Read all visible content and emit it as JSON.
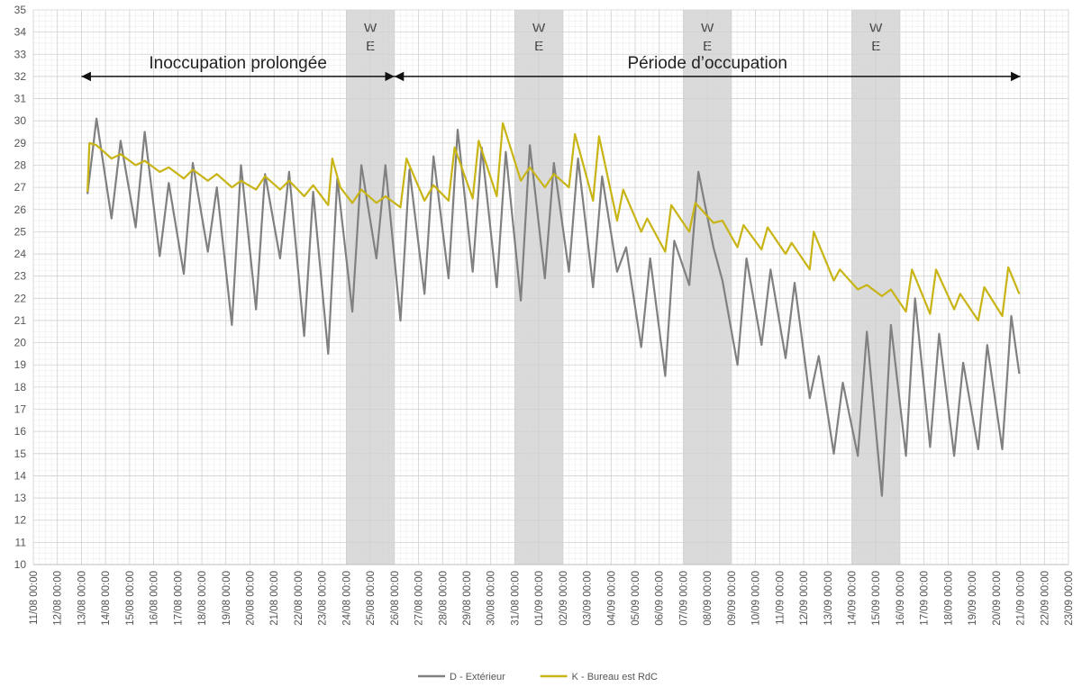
{
  "chart_data": {
    "type": "line",
    "title": "",
    "xlabel": "",
    "ylabel": "",
    "ylim": [
      10,
      35
    ],
    "yticks": [
      10,
      11,
      12,
      13,
      14,
      15,
      16,
      17,
      18,
      19,
      20,
      21,
      22,
      23,
      24,
      25,
      26,
      27,
      28,
      29,
      30,
      31,
      32,
      33,
      34,
      35
    ],
    "x_range": [
      "2020-08-11",
      "2020-09-23"
    ],
    "x_tick_labels": [
      "11/08 00:00",
      "12/08 00:00",
      "13/08 00:00",
      "14/08 00:00",
      "15/08 00:00",
      "16/08 00:00",
      "17/08 00:00",
      "18/08 00:00",
      "19/08 00:00",
      "20/08 00:00",
      "21/08 00:00",
      "22/08 00:00",
      "23/08 00:00",
      "24/08 00:00",
      "25/08 00:00",
      "26/08 00:00",
      "27/08 00:00",
      "28/08 00:00",
      "29/08 00:00",
      "30/08 00:00",
      "31/08 00:00",
      "01/09 00:00",
      "02/09 00:00",
      "03/09 00:00",
      "04/09 00:00",
      "05/09 00:00",
      "06/09 00:00",
      "07/09 00:00",
      "08/09 00:00",
      "09/09 00:00",
      "10/09 00:00",
      "11/09 00:00",
      "12/09 00:00",
      "13/09 00:00",
      "14/09 00:00",
      "15/09 00:00",
      "16/09 00:00",
      "17/09 00:00",
      "18/09 00:00",
      "19/09 00:00",
      "20/09 00:00",
      "21/09 00:00",
      "22/09 00:00",
      "23/09 00:00"
    ],
    "grid": true,
    "legend": "bottom",
    "weekends": [
      {
        "start": "2020-08-24 00:00",
        "end": "2020-08-26 00:00",
        "label_top": "W",
        "label_bottom": "E"
      },
      {
        "start": "2020-08-31 00:00",
        "end": "2020-09-02 00:00",
        "label_top": "W",
        "label_bottom": "E"
      },
      {
        "start": "2020-09-07 00:00",
        "end": "2020-09-09 00:00",
        "label_top": "W",
        "label_bottom": "E"
      },
      {
        "start": "2020-09-14 00:00",
        "end": "2020-09-16 00:00",
        "label_top": "W",
        "label_bottom": "E"
      }
    ],
    "annotations": [
      {
        "text": "Inoccupation prolongée",
        "from": "2020-08-13 00:00",
        "to": "2020-08-26 00:00",
        "y": 32
      },
      {
        "text": "Période d’occupation",
        "from": "2020-08-26 00:00",
        "to": "2020-09-21 00:00",
        "y": 32
      }
    ],
    "series": [
      {
        "name": "D - Extérieur",
        "color": "#808080",
        "points": [
          [
            "2020-08-13 06:00",
            26.7
          ],
          [
            "2020-08-13 15:00",
            30.1
          ],
          [
            "2020-08-14 06:00",
            25.6
          ],
          [
            "2020-08-14 15:00",
            29.1
          ],
          [
            "2020-08-15 06:00",
            25.2
          ],
          [
            "2020-08-15 15:00",
            29.5
          ],
          [
            "2020-08-16 06:00",
            23.9
          ],
          [
            "2020-08-16 15:00",
            27.2
          ],
          [
            "2020-08-17 06:00",
            23.1
          ],
          [
            "2020-08-17 15:00",
            28.1
          ],
          [
            "2020-08-18 06:00",
            24.1
          ],
          [
            "2020-08-18 15:00",
            27.0
          ],
          [
            "2020-08-19 06:00",
            20.8
          ],
          [
            "2020-08-19 15:00",
            28.0
          ],
          [
            "2020-08-20 06:00",
            21.5
          ],
          [
            "2020-08-20 15:00",
            27.6
          ],
          [
            "2020-08-21 06:00",
            23.8
          ],
          [
            "2020-08-21 15:00",
            27.7
          ],
          [
            "2020-08-22 06:00",
            20.3
          ],
          [
            "2020-08-22 15:00",
            26.8
          ],
          [
            "2020-08-23 06:00",
            19.5
          ],
          [
            "2020-08-23 15:00",
            27.4
          ],
          [
            "2020-08-24 06:00",
            21.4
          ],
          [
            "2020-08-24 15:00",
            28.0
          ],
          [
            "2020-08-25 06:00",
            23.8
          ],
          [
            "2020-08-25 15:00",
            28.0
          ],
          [
            "2020-08-26 06:00",
            21.0
          ],
          [
            "2020-08-26 15:00",
            27.8
          ],
          [
            "2020-08-27 06:00",
            22.2
          ],
          [
            "2020-08-27 15:00",
            28.4
          ],
          [
            "2020-08-28 06:00",
            22.9
          ],
          [
            "2020-08-28 15:00",
            29.6
          ],
          [
            "2020-08-29 06:00",
            23.2
          ],
          [
            "2020-08-29 15:00",
            28.8
          ],
          [
            "2020-08-30 06:00",
            22.5
          ],
          [
            "2020-08-30 15:00",
            28.6
          ],
          [
            "2020-08-31 06:00",
            21.9
          ],
          [
            "2020-08-31 15:00",
            28.9
          ],
          [
            "2020-09-01 06:00",
            22.9
          ],
          [
            "2020-09-01 15:00",
            28.1
          ],
          [
            "2020-09-02 06:00",
            23.2
          ],
          [
            "2020-09-02 15:00",
            28.3
          ],
          [
            "2020-09-03 06:00",
            22.5
          ],
          [
            "2020-09-03 15:00",
            27.5
          ],
          [
            "2020-09-04 06:00",
            23.2
          ],
          [
            "2020-09-04 15:00",
            24.3
          ],
          [
            "2020-09-05 06:00",
            19.8
          ],
          [
            "2020-09-05 15:00",
            23.8
          ],
          [
            "2020-09-06 06:00",
            18.5
          ],
          [
            "2020-09-06 15:00",
            24.6
          ],
          [
            "2020-09-07 06:00",
            22.6
          ],
          [
            "2020-09-07 15:00",
            27.7
          ],
          [
            "2020-09-08 06:00",
            24.3
          ],
          [
            "2020-09-08 15:00",
            22.8
          ],
          [
            "2020-09-09 06:00",
            19.0
          ],
          [
            "2020-09-09 15:00",
            23.8
          ],
          [
            "2020-09-10 06:00",
            19.9
          ],
          [
            "2020-09-10 15:00",
            23.3
          ],
          [
            "2020-09-11 06:00",
            19.3
          ],
          [
            "2020-09-11 15:00",
            22.7
          ],
          [
            "2020-09-12 06:00",
            17.5
          ],
          [
            "2020-09-12 15:00",
            19.4
          ],
          [
            "2020-09-13 06:00",
            15.0
          ],
          [
            "2020-09-13 15:00",
            18.2
          ],
          [
            "2020-09-14 06:00",
            14.9
          ],
          [
            "2020-09-14 15:00",
            20.5
          ],
          [
            "2020-09-15 06:00",
            13.1
          ],
          [
            "2020-09-15 15:00",
            20.8
          ],
          [
            "2020-09-16 06:00",
            14.9
          ],
          [
            "2020-09-16 15:00",
            22.0
          ],
          [
            "2020-09-17 06:00",
            15.3
          ],
          [
            "2020-09-17 15:00",
            20.4
          ],
          [
            "2020-09-18 06:00",
            14.9
          ],
          [
            "2020-09-18 15:00",
            19.1
          ],
          [
            "2020-09-19 06:00",
            15.2
          ],
          [
            "2020-09-19 15:00",
            19.9
          ],
          [
            "2020-09-20 06:00",
            15.2
          ],
          [
            "2020-09-20 15:00",
            21.2
          ],
          [
            "2020-09-20 23:00",
            18.6
          ]
        ]
      },
      {
        "name": "K - Bureau est RdC",
        "color": "#C8B414",
        "points": [
          [
            "2020-08-13 06:00",
            26.8
          ],
          [
            "2020-08-13 08:00",
            29.0
          ],
          [
            "2020-08-13 15:00",
            28.9
          ],
          [
            "2020-08-14 06:00",
            28.3
          ],
          [
            "2020-08-14 15:00",
            28.5
          ],
          [
            "2020-08-15 06:00",
            28.0
          ],
          [
            "2020-08-15 15:00",
            28.2
          ],
          [
            "2020-08-16 06:00",
            27.7
          ],
          [
            "2020-08-16 15:00",
            27.9
          ],
          [
            "2020-08-17 06:00",
            27.4
          ],
          [
            "2020-08-17 15:00",
            27.8
          ],
          [
            "2020-08-18 06:00",
            27.3
          ],
          [
            "2020-08-18 15:00",
            27.6
          ],
          [
            "2020-08-19 06:00",
            27.0
          ],
          [
            "2020-08-19 15:00",
            27.3
          ],
          [
            "2020-08-20 06:00",
            26.9
          ],
          [
            "2020-08-20 15:00",
            27.5
          ],
          [
            "2020-08-21 06:00",
            26.9
          ],
          [
            "2020-08-21 15:00",
            27.3
          ],
          [
            "2020-08-22 06:00",
            26.6
          ],
          [
            "2020-08-22 15:00",
            27.1
          ],
          [
            "2020-08-23 06:00",
            26.2
          ],
          [
            "2020-08-23 10:00",
            28.3
          ],
          [
            "2020-08-23 18:00",
            27.0
          ],
          [
            "2020-08-24 06:00",
            26.3
          ],
          [
            "2020-08-24 15:00",
            26.9
          ],
          [
            "2020-08-25 06:00",
            26.3
          ],
          [
            "2020-08-25 15:00",
            26.6
          ],
          [
            "2020-08-26 06:00",
            26.1
          ],
          [
            "2020-08-26 12:00",
            28.3
          ],
          [
            "2020-08-27 06:00",
            26.4
          ],
          [
            "2020-08-27 15:00",
            27.1
          ],
          [
            "2020-08-28 06:00",
            26.4
          ],
          [
            "2020-08-28 12:00",
            28.8
          ],
          [
            "2020-08-29 06:00",
            26.5
          ],
          [
            "2020-08-29 12:00",
            29.1
          ],
          [
            "2020-08-30 06:00",
            26.6
          ],
          [
            "2020-08-30 12:00",
            29.9
          ],
          [
            "2020-08-31 06:00",
            27.3
          ],
          [
            "2020-08-31 15:00",
            27.9
          ],
          [
            "2020-09-01 06:00",
            27.0
          ],
          [
            "2020-09-01 15:00",
            27.6
          ],
          [
            "2020-09-02 06:00",
            27.0
          ],
          [
            "2020-09-02 12:00",
            29.4
          ],
          [
            "2020-09-03 06:00",
            26.4
          ],
          [
            "2020-09-03 12:00",
            29.3
          ],
          [
            "2020-09-04 06:00",
            25.5
          ],
          [
            "2020-09-04 12:00",
            26.9
          ],
          [
            "2020-09-05 06:00",
            25.0
          ],
          [
            "2020-09-05 12:00",
            25.6
          ],
          [
            "2020-09-06 06:00",
            24.1
          ],
          [
            "2020-09-06 12:00",
            26.2
          ],
          [
            "2020-09-07 06:00",
            25.0
          ],
          [
            "2020-09-07 12:00",
            26.3
          ],
          [
            "2020-09-08 06:00",
            25.4
          ],
          [
            "2020-09-08 15:00",
            25.5
          ],
          [
            "2020-09-09 06:00",
            24.3
          ],
          [
            "2020-09-09 12:00",
            25.3
          ],
          [
            "2020-09-10 06:00",
            24.2
          ],
          [
            "2020-09-10 12:00",
            25.2
          ],
          [
            "2020-09-11 06:00",
            24.0
          ],
          [
            "2020-09-11 12:00",
            24.5
          ],
          [
            "2020-09-12 06:00",
            23.3
          ],
          [
            "2020-09-12 10:00",
            25.0
          ],
          [
            "2020-09-13 06:00",
            22.8
          ],
          [
            "2020-09-13 12:00",
            23.3
          ],
          [
            "2020-09-14 06:00",
            22.4
          ],
          [
            "2020-09-14 15:00",
            22.6
          ],
          [
            "2020-09-15 06:00",
            22.1
          ],
          [
            "2020-09-15 15:00",
            22.4
          ],
          [
            "2020-09-16 06:00",
            21.4
          ],
          [
            "2020-09-16 12:00",
            23.3
          ],
          [
            "2020-09-17 06:00",
            21.3
          ],
          [
            "2020-09-17 12:00",
            23.3
          ],
          [
            "2020-09-18 06:00",
            21.5
          ],
          [
            "2020-09-18 12:00",
            22.2
          ],
          [
            "2020-09-19 06:00",
            21.0
          ],
          [
            "2020-09-19 12:00",
            22.5
          ],
          [
            "2020-09-20 06:00",
            21.2
          ],
          [
            "2020-09-20 12:00",
            23.4
          ],
          [
            "2020-09-20 23:00",
            22.2
          ]
        ]
      }
    ]
  }
}
